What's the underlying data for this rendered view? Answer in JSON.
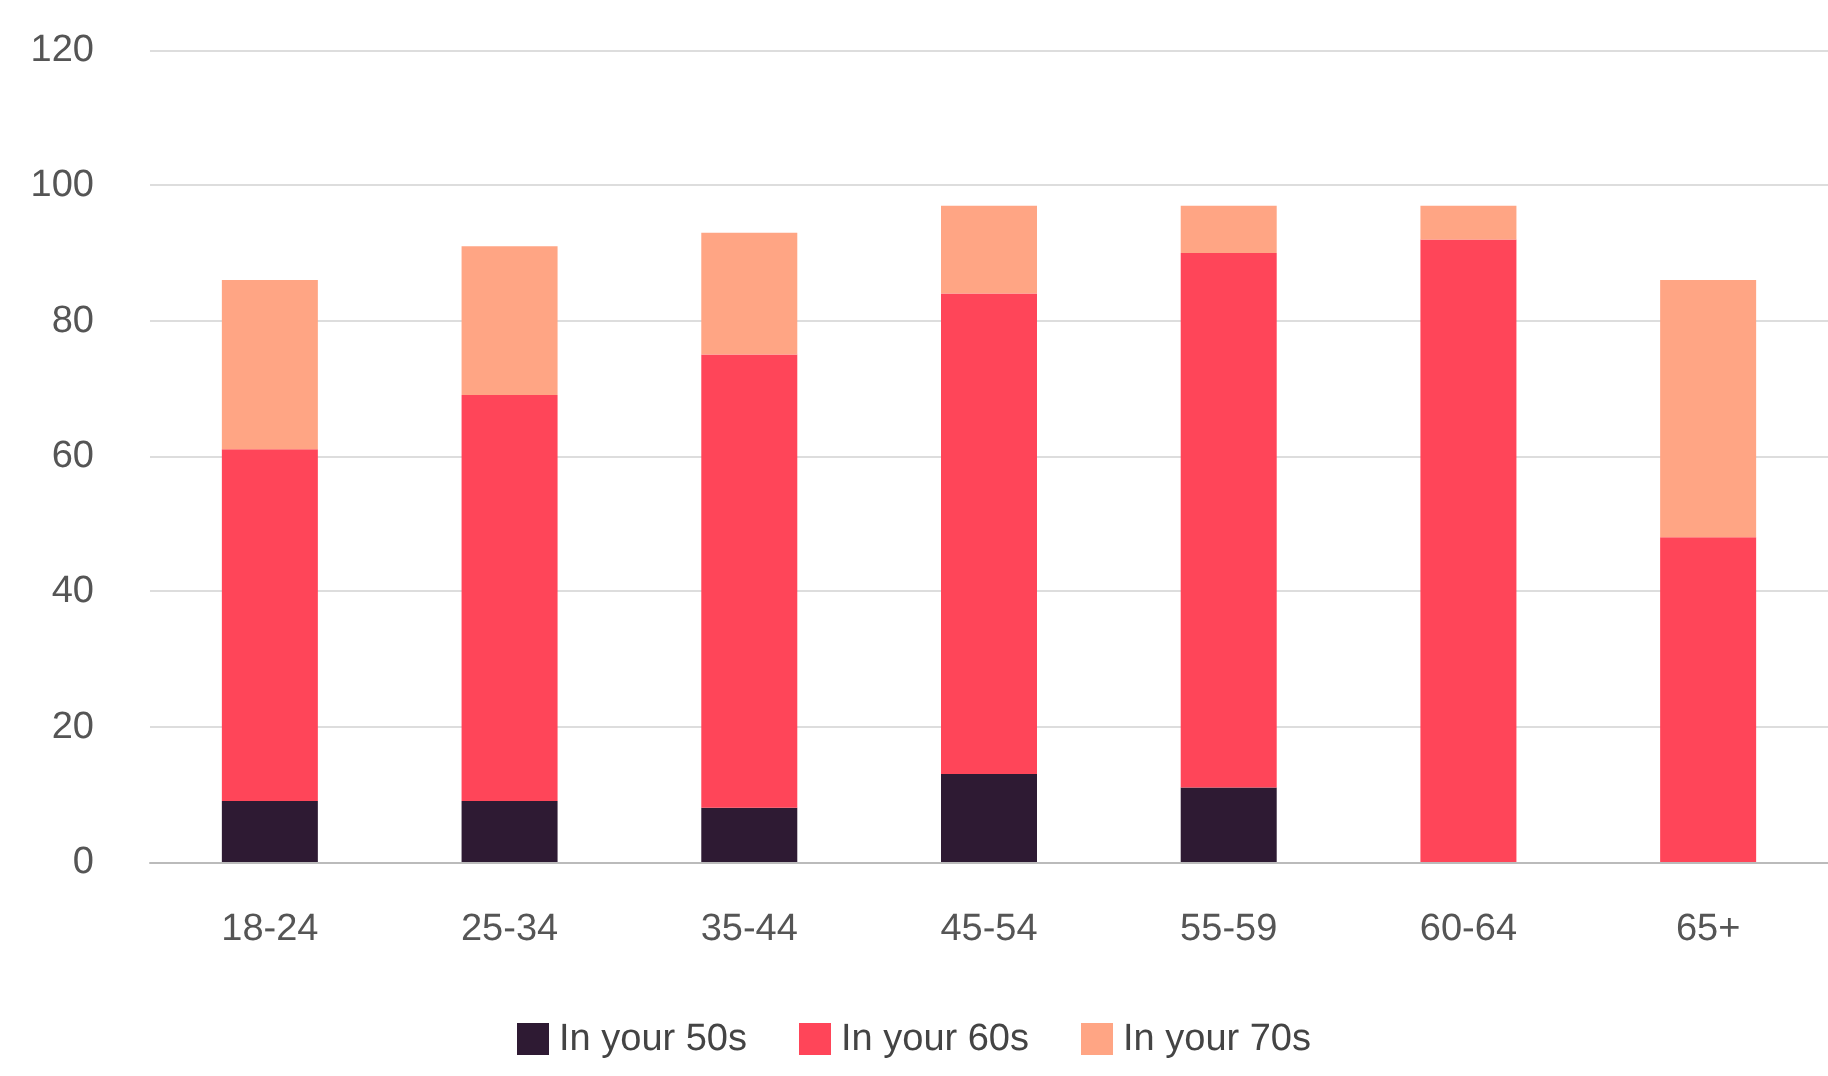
{
  "chart_data": {
    "type": "bar",
    "stacked": true,
    "categories": [
      "18-24",
      "25-34",
      "35-44",
      "45-54",
      "55-59",
      "60-64",
      "65+"
    ],
    "series": [
      {
        "name": "In your 50s",
        "color": "#2e1a33",
        "values": [
          9,
          9,
          8,
          13,
          11,
          0,
          0
        ]
      },
      {
        "name": "In your 60s",
        "color": "#ff4559",
        "values": [
          52,
          60,
          67,
          71,
          79,
          92,
          48
        ]
      },
      {
        "name": "In your 70s",
        "color": "#ffa584",
        "values": [
          25,
          22,
          18,
          13,
          7,
          5,
          38
        ]
      }
    ],
    "ylim": [
      0,
      120
    ],
    "yticks": [
      0,
      20,
      40,
      60,
      80,
      100,
      120
    ],
    "grid": "y",
    "legend": "bottom"
  }
}
